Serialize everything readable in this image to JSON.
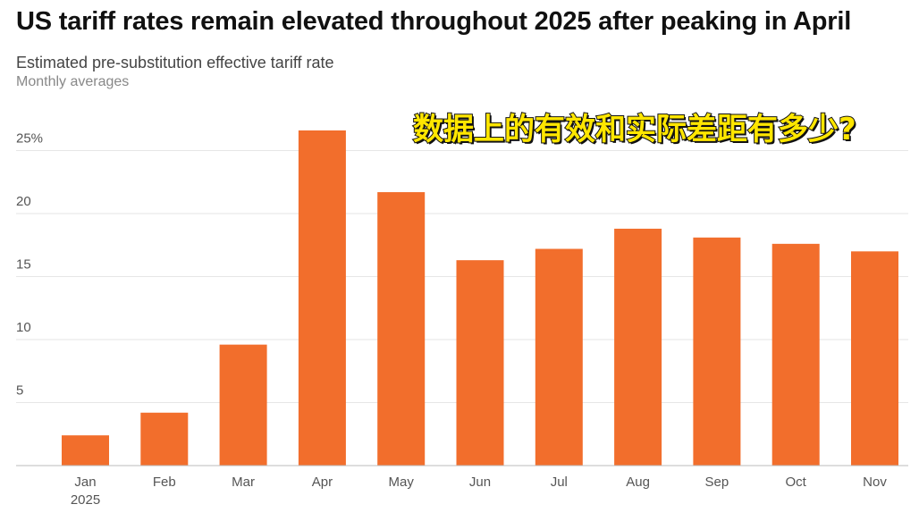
{
  "header": {
    "title": "US tariff rates remain elevated throughout 2025 after peaking in April",
    "subtitle": "Estimated pre-substitution effective tariff rate",
    "note": "Monthly averages"
  },
  "overlay_text": "数据上的有效和实际差距有多少?",
  "chart_data": {
    "type": "bar",
    "title": "US tariff rates remain elevated throughout 2025 after peaking in April",
    "subtitle": "Estimated pre-substitution effective tariff rate",
    "categories": [
      "Jan",
      "Feb",
      "Mar",
      "Apr",
      "May",
      "Jun",
      "Jul",
      "Aug",
      "Sep",
      "Oct",
      "Nov"
    ],
    "category_sublabels": [
      "2025",
      "",
      "",
      "",
      "",
      "",
      "",
      "",
      "",
      "",
      ""
    ],
    "values": [
      2.4,
      4.2,
      9.6,
      26.6,
      21.7,
      16.3,
      17.2,
      18.8,
      18.1,
      17.6,
      17.0
    ],
    "ylim": [
      0,
      27
    ],
    "yticks": [
      5,
      10,
      15,
      20,
      25
    ],
    "ytick_labels": [
      "5",
      "10",
      "15",
      "20",
      "25%"
    ],
    "grid": true,
    "bar_color": "#f26e2c"
  }
}
